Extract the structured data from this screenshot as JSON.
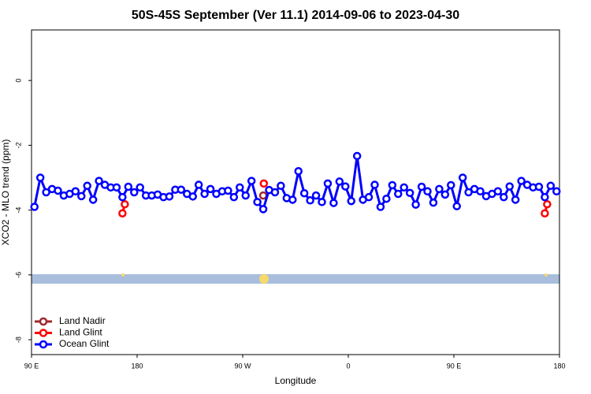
{
  "chart_data": {
    "type": "line",
    "title": "50S-45S September (Ver 11.1)   2014-09-06 to 2023-04-30",
    "xlabel": "Longitude",
    "ylabel": "XCO2 - MLO trend (ppm)",
    "xlim": [
      90,
      540
    ],
    "xticks": [
      {
        "value": 90,
        "label": "90 E"
      },
      180,
      {
        "value": 270,
        "label": "90 W"
      },
      {
        "value": 360,
        "label": "0"
      },
      {
        "value": 450,
        "label": "90 E"
      },
      {
        "value": 540,
        "label": "180"
      }
    ],
    "ylim": [
      -8.46,
      1.56
    ],
    "yticks": [
      0,
      -2,
      -4,
      -6,
      -8
    ],
    "legend": "bottom-left",
    "series": [
      {
        "name": "Land Nadir",
        "color": "#a0282d",
        "x": [
          287.5
        ],
        "values": [
          -3.55
        ]
      },
      {
        "name": "Land Glint",
        "color": "#ff0000",
        "x": [
          167.5,
          169.5,
          null,
          288,
          null,
          527.5,
          529.5
        ],
        "values": [
          -4.1,
          -3.82,
          null,
          -3.18,
          null,
          -4.1,
          -3.82
        ]
      },
      {
        "name": "Ocean Glint",
        "color": "#0000ff",
        "x": [
          92.5,
          97.5,
          102.5,
          107.5,
          112.5,
          117.5,
          122.5,
          127.5,
          132.5,
          137.5,
          142.5,
          147.5,
          152.5,
          157.5,
          162.5,
          167.5,
          172.5,
          177.5,
          182.5,
          187.5,
          192.5,
          197.5,
          202.5,
          207.5,
          212.5,
          217.5,
          222.5,
          227.5,
          232.5,
          237.5,
          242.5,
          247.5,
          252.5,
          257.5,
          262.5,
          267.5,
          272.5,
          277.5,
          282.5,
          287.5,
          292.5,
          297.5,
          302.5,
          307.5,
          312.5,
          317.5,
          322.5,
          327.5,
          332.5,
          337.5,
          342.5,
          347.5,
          352.5,
          357.5,
          362.5,
          367.5,
          372.5,
          377.5,
          382.5,
          387.5,
          392.5,
          397.5,
          402.5,
          407.5,
          412.5,
          417.5,
          422.5,
          427.5,
          432.5,
          437.5,
          442.5,
          447.5,
          452.5,
          457.5,
          462.5,
          467.5,
          472.5,
          477.5,
          482.5,
          487.5,
          492.5,
          497.5,
          502.5,
          507.5,
          512.5,
          517.5,
          522.5,
          527.5,
          532.5,
          537.5
        ],
        "values": [
          -3.9,
          -3.0,
          -3.45,
          -3.35,
          -3.4,
          -3.55,
          -3.5,
          -3.42,
          -3.57,
          -3.25,
          -3.68,
          -3.1,
          -3.22,
          -3.3,
          -3.3,
          -3.6,
          -3.28,
          -3.45,
          -3.3,
          -3.55,
          -3.55,
          -3.52,
          -3.6,
          -3.58,
          -3.37,
          -3.37,
          -3.5,
          -3.58,
          -3.22,
          -3.5,
          -3.35,
          -3.5,
          -3.42,
          -3.4,
          -3.6,
          -3.3,
          -3.55,
          -3.1,
          -3.75,
          -3.97,
          -3.38,
          -3.45,
          -3.25,
          -3.63,
          -3.68,
          -2.8,
          -3.48,
          -3.7,
          -3.55,
          -3.75,
          -3.18,
          -3.78,
          -3.12,
          -3.27,
          -3.72,
          -2.33,
          -3.68,
          -3.6,
          -3.22,
          -3.9,
          -3.65,
          -3.23,
          -3.5,
          -3.3,
          -3.47,
          -3.83,
          -3.28,
          -3.42,
          -3.77,
          -3.35,
          -3.52,
          -3.23,
          -3.88,
          -3.0,
          -3.45,
          -3.35,
          -3.42,
          -3.57,
          -3.5,
          -3.42,
          -3.6,
          -3.27,
          -3.68,
          -3.1,
          -3.22,
          -3.3,
          -3.28,
          -3.6,
          -3.25,
          -3.42
        ]
      }
    ]
  }
}
